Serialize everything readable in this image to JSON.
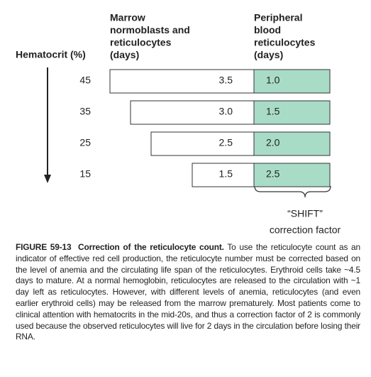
{
  "header": {
    "hematocrit": "Hematocrit (%)",
    "marrow": [
      "Marrow",
      "normoblasts and",
      "reticulocytes",
      "(days)"
    ],
    "peripheral": [
      "Peripheral",
      "blood",
      "reticulocytes",
      "(days)"
    ]
  },
  "rows": [
    {
      "hematocrit": 45,
      "marrow": {
        "value": 3.5,
        "label": "3.5"
      },
      "peripheral": "1.0"
    },
    {
      "hematocrit": 35,
      "marrow": {
        "value": 3,
        "label": "3.0"
      },
      "peripheral": "1.5"
    },
    {
      "hematocrit": 25,
      "marrow": {
        "value": 2.5,
        "label": "2.5"
      },
      "peripheral": "2.0"
    },
    {
      "hematocrit": 15,
      "marrow": {
        "value": 1.5,
        "label": "1.5"
      },
      "peripheral": "2.5"
    }
  ],
  "shift": [
    "“SHIFT”",
    "correction factor"
  ],
  "caption": {
    "label": "FIGURE 59-13",
    "title": "Correction of the reticulocyte count.",
    "body": "To use the reticulocyte count as an indicator of effective red cell production, the reticulocyte number must be corrected based on the level of anemia and the circulating life span of the reticulocytes. Erythroid cells take ~4.5 days to mature. At a normal hemoglobin, reticulocytes are released to the circulation with ~1 day left as reticulocytes. However, with different levels of anemia, reticulocytes (and even earlier erythroid cells) may be released from the marrow prematurely. Most patients come to clinical attention with hematocrits in the mid-20s, and thus a correction factor of 2 is commonly used because the observed reticulocytes will live for 2 days in the circulation before losing their RNA."
  }
}
